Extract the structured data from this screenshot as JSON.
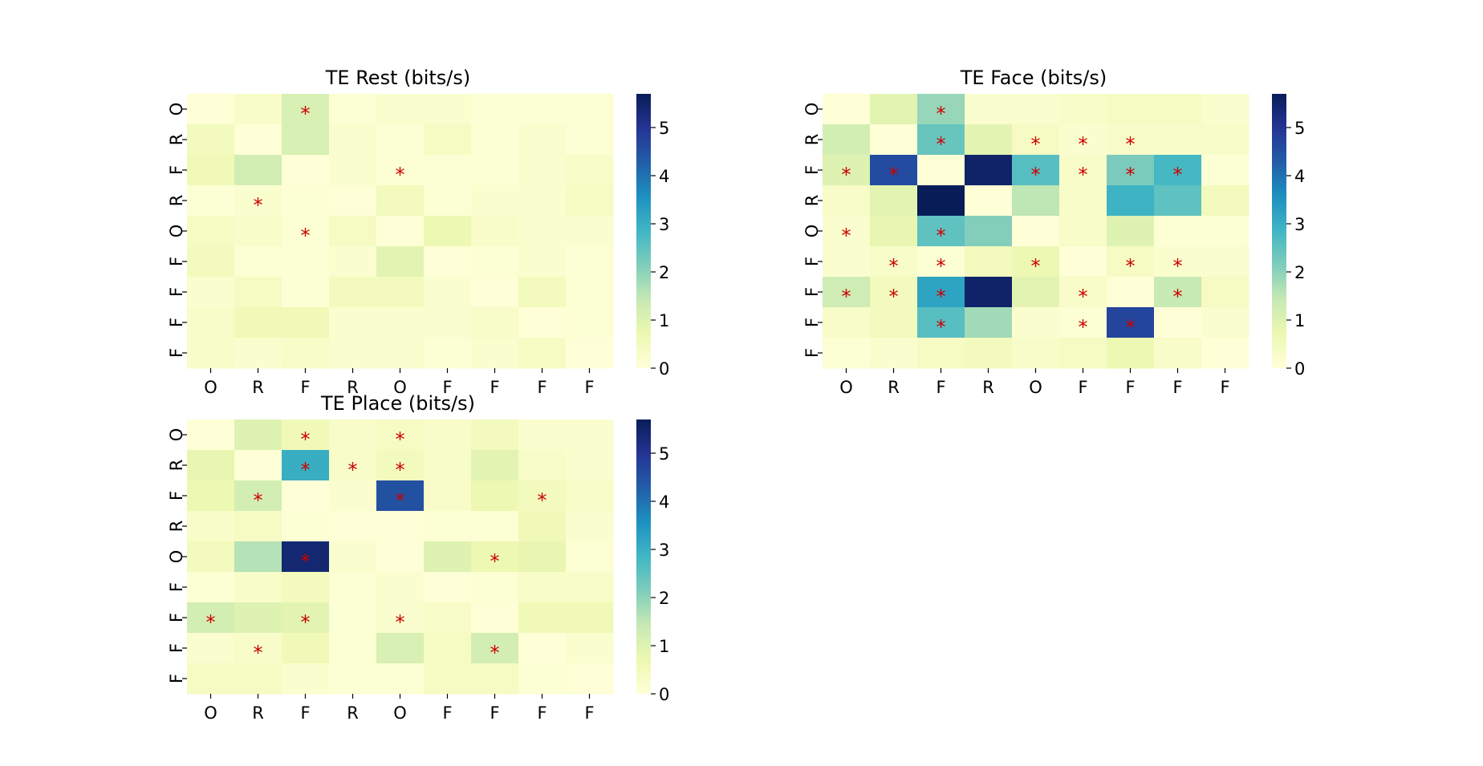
{
  "chart_data": [
    {
      "type": "heatmap",
      "title": "TE Rest (bits/s)",
      "xlabel": "",
      "ylabel": "",
      "x_categories": [
        "O",
        "R",
        "F",
        "R",
        "O",
        "F",
        "F",
        "F",
        "F"
      ],
      "y_categories": [
        "O",
        "R",
        "F",
        "R",
        "O",
        "F",
        "F",
        "F",
        "F"
      ],
      "colorbar": {
        "colormap": "YlGnBu",
        "vmin": 0,
        "vmax": 5.7,
        "ticks": [
          "0",
          "1",
          "2",
          "3",
          "4",
          "5"
        ]
      },
      "significance_marker": "*",
      "values": [
        [
          0.05,
          0.3,
          1.1,
          0.1,
          0.2,
          0.2,
          0.1,
          0.1,
          0.1
        ],
        [
          0.5,
          0.05,
          1.1,
          0.2,
          0.1,
          0.4,
          0.1,
          0.2,
          0.1
        ],
        [
          0.6,
          1.2,
          0.05,
          0.2,
          0.1,
          0.1,
          0.1,
          0.2,
          0.3
        ],
        [
          0.1,
          0.2,
          0.1,
          0.05,
          0.5,
          0.1,
          0.2,
          0.2,
          0.4
        ],
        [
          0.4,
          0.3,
          0.1,
          0.4,
          0.05,
          0.7,
          0.3,
          0.2,
          0.2
        ],
        [
          0.5,
          0.1,
          0.1,
          0.2,
          0.9,
          0.05,
          0.1,
          0.2,
          0.1
        ],
        [
          0.2,
          0.4,
          0.1,
          0.5,
          0.5,
          0.2,
          0.05,
          0.5,
          0.1
        ],
        [
          0.3,
          0.6,
          0.6,
          0.2,
          0.2,
          0.2,
          0.3,
          0.05,
          0.1
        ],
        [
          0.3,
          0.2,
          0.3,
          0.2,
          0.2,
          0.1,
          0.2,
          0.4,
          0.05
        ]
      ],
      "significant": [
        [
          0,
          2
        ],
        [
          2,
          4
        ],
        [
          3,
          1
        ],
        [
          4,
          2
        ]
      ]
    },
    {
      "type": "heatmap",
      "title": "TE Face (bits/s)",
      "xlabel": "",
      "ylabel": "",
      "x_categories": [
        "O",
        "R",
        "F",
        "R",
        "O",
        "F",
        "F",
        "F",
        "F"
      ],
      "y_categories": [
        "O",
        "R",
        "F",
        "R",
        "O",
        "F",
        "F",
        "F",
        "F"
      ],
      "colorbar": {
        "colormap": "YlGnBu",
        "vmin": 0,
        "vmax": 5.7,
        "ticks": [
          "0",
          "1",
          "2",
          "3",
          "4",
          "5"
        ]
      },
      "significance_marker": "*",
      "values": [
        [
          0.05,
          0.9,
          1.9,
          0.2,
          0.2,
          0.3,
          0.4,
          0.4,
          0.2
        ],
        [
          1.2,
          0.05,
          2.4,
          0.9,
          0.4,
          0.2,
          0.3,
          0.3,
          0.3
        ],
        [
          1.0,
          4.6,
          0.05,
          5.5,
          2.6,
          0.3,
          2.2,
          2.8,
          0.1
        ],
        [
          0.3,
          0.9,
          5.7,
          0.05,
          1.5,
          0.3,
          2.9,
          2.5,
          0.5
        ],
        [
          0.2,
          0.8,
          2.5,
          2.1,
          0.05,
          0.3,
          1.0,
          0.1,
          0.1
        ],
        [
          0.2,
          0.3,
          0.1,
          0.5,
          0.7,
          0.05,
          0.4,
          0.2,
          0.2
        ],
        [
          1.3,
          0.5,
          3.2,
          5.5,
          0.9,
          0.3,
          0.05,
          1.4,
          0.4
        ],
        [
          0.3,
          0.5,
          2.6,
          1.8,
          0.2,
          0.1,
          4.7,
          0.05,
          0.2
        ],
        [
          0.1,
          0.2,
          0.4,
          0.5,
          0.3,
          0.4,
          0.7,
          0.3,
          0.05
        ]
      ],
      "significant": [
        [
          0,
          2
        ],
        [
          1,
          2
        ],
        [
          1,
          4
        ],
        [
          1,
          5
        ],
        [
          1,
          6
        ],
        [
          2,
          0
        ],
        [
          2,
          1
        ],
        [
          2,
          4
        ],
        [
          2,
          5
        ],
        [
          2,
          6
        ],
        [
          2,
          7
        ],
        [
          4,
          0
        ],
        [
          4,
          2
        ],
        [
          5,
          1
        ],
        [
          5,
          2
        ],
        [
          5,
          4
        ],
        [
          5,
          6
        ],
        [
          5,
          7
        ],
        [
          6,
          0
        ],
        [
          6,
          1
        ],
        [
          6,
          2
        ],
        [
          6,
          5
        ],
        [
          6,
          7
        ],
        [
          7,
          2
        ],
        [
          7,
          5
        ],
        [
          7,
          6
        ]
      ]
    },
    {
      "type": "heatmap",
      "title": "TE Place (bits/s)",
      "xlabel": "",
      "ylabel": "",
      "x_categories": [
        "O",
        "R",
        "F",
        "R",
        "O",
        "F",
        "F",
        "F",
        "F"
      ],
      "y_categories": [
        "O",
        "R",
        "F",
        "R",
        "O",
        "F",
        "F",
        "F",
        "F"
      ],
      "colorbar": {
        "colormap": "YlGnBu",
        "vmin": 0,
        "vmax": 5.7,
        "ticks": [
          "0",
          "1",
          "2",
          "3",
          "4",
          "5"
        ]
      },
      "significance_marker": "*",
      "values": [
        [
          0.05,
          1.0,
          0.6,
          0.3,
          0.4,
          0.3,
          0.5,
          0.2,
          0.2
        ],
        [
          0.8,
          0.05,
          3.0,
          0.3,
          0.5,
          0.3,
          0.9,
          0.3,
          0.2
        ],
        [
          0.7,
          1.2,
          0.05,
          0.2,
          4.5,
          0.3,
          0.7,
          0.5,
          0.3
        ],
        [
          0.3,
          0.4,
          0.1,
          0.05,
          0.05,
          0.1,
          0.1,
          0.6,
          0.2
        ],
        [
          0.5,
          1.6,
          5.4,
          0.2,
          0.05,
          1.0,
          0.7,
          0.8,
          0.1
        ],
        [
          0.1,
          0.3,
          0.5,
          0.1,
          0.2,
          0.05,
          0.1,
          0.3,
          0.3
        ],
        [
          1.2,
          1.0,
          0.9,
          0.1,
          0.2,
          0.3,
          0.05,
          0.6,
          0.6
        ],
        [
          0.2,
          0.3,
          0.6,
          0.1,
          1.1,
          0.4,
          1.2,
          0.05,
          0.2
        ],
        [
          0.4,
          0.4,
          0.2,
          0.1,
          0.1,
          0.4,
          0.4,
          0.1,
          0.05
        ]
      ],
      "significant": [
        [
          0,
          2
        ],
        [
          0,
          4
        ],
        [
          1,
          2
        ],
        [
          1,
          3
        ],
        [
          1,
          4
        ],
        [
          2,
          1
        ],
        [
          2,
          4
        ],
        [
          2,
          7
        ],
        [
          4,
          2
        ],
        [
          4,
          6
        ],
        [
          6,
          0
        ],
        [
          6,
          2
        ],
        [
          6,
          4
        ],
        [
          7,
          1
        ],
        [
          7,
          6
        ]
      ]
    }
  ]
}
